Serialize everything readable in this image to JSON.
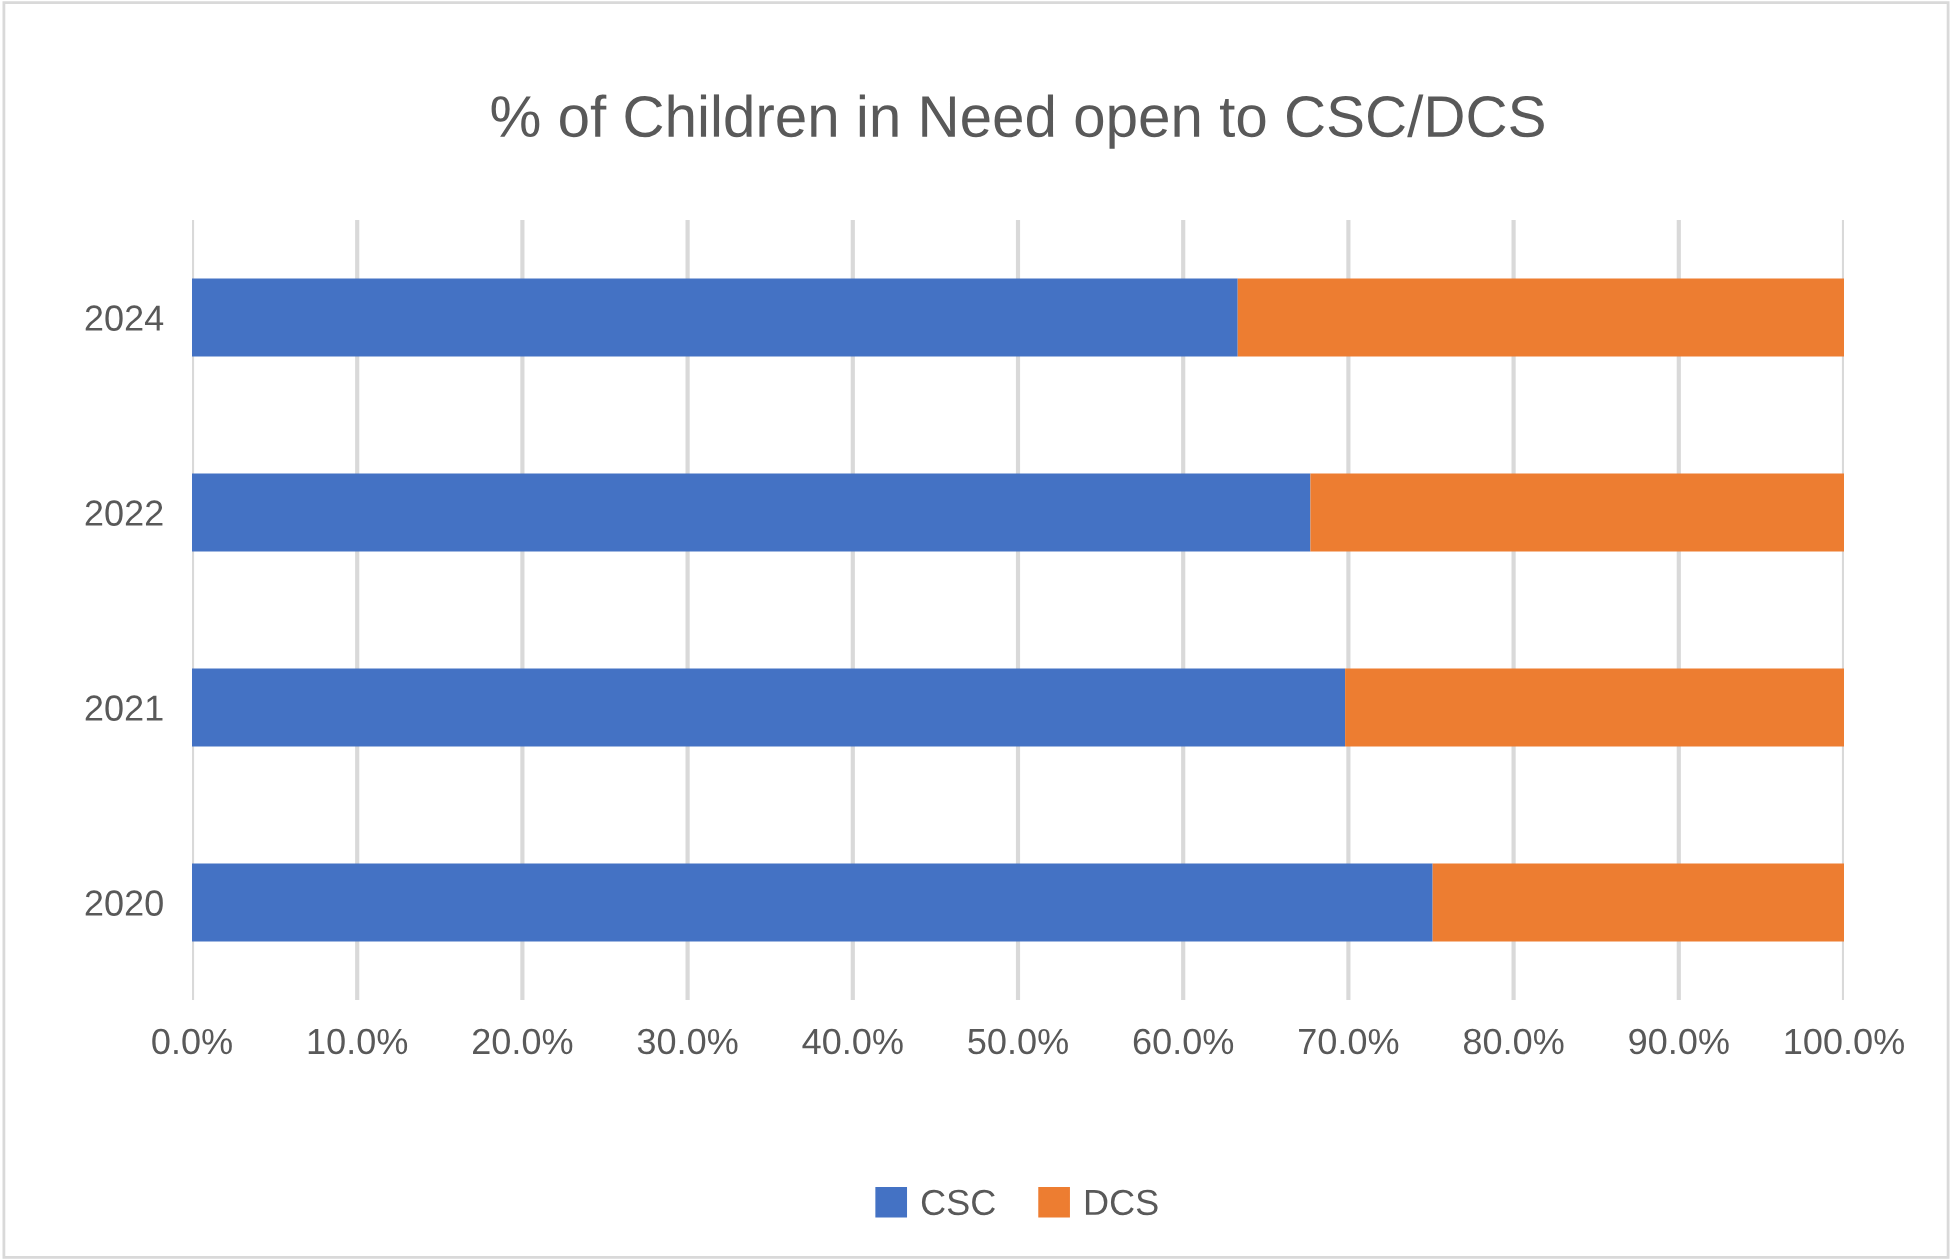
{
  "chart_data": {
    "type": "bar",
    "orientation": "horizontal",
    "stacked": true,
    "title": "% of Children in Need open to CSC/DCS",
    "categories": [
      "2024",
      "2022",
      "2021",
      "2020"
    ],
    "series": [
      {
        "name": "CSC",
        "color": "#4472c4",
        "values": [
          63.3,
          67.7,
          69.8,
          75.1
        ]
      },
      {
        "name": "DCS",
        "color": "#ed7d31",
        "values": [
          36.7,
          32.3,
          30.2,
          24.9
        ]
      }
    ],
    "xlim": [
      0,
      100
    ],
    "xticks": [
      {
        "value": 0,
        "label": "0.0%"
      },
      {
        "value": 10,
        "label": "10.0%"
      },
      {
        "value": 20,
        "label": "20.0%"
      },
      {
        "value": 30,
        "label": "30.0%"
      },
      {
        "value": 40,
        "label": "40.0%"
      },
      {
        "value": 50,
        "label": "50.0%"
      },
      {
        "value": 60,
        "label": "60.0%"
      },
      {
        "value": 70,
        "label": "70.0%"
      },
      {
        "value": 80,
        "label": "80.0%"
      },
      {
        "value": 90,
        "label": "90.0%"
      },
      {
        "value": 100,
        "label": "100.0%"
      }
    ],
    "grid": "x",
    "legend": "bottom"
  }
}
